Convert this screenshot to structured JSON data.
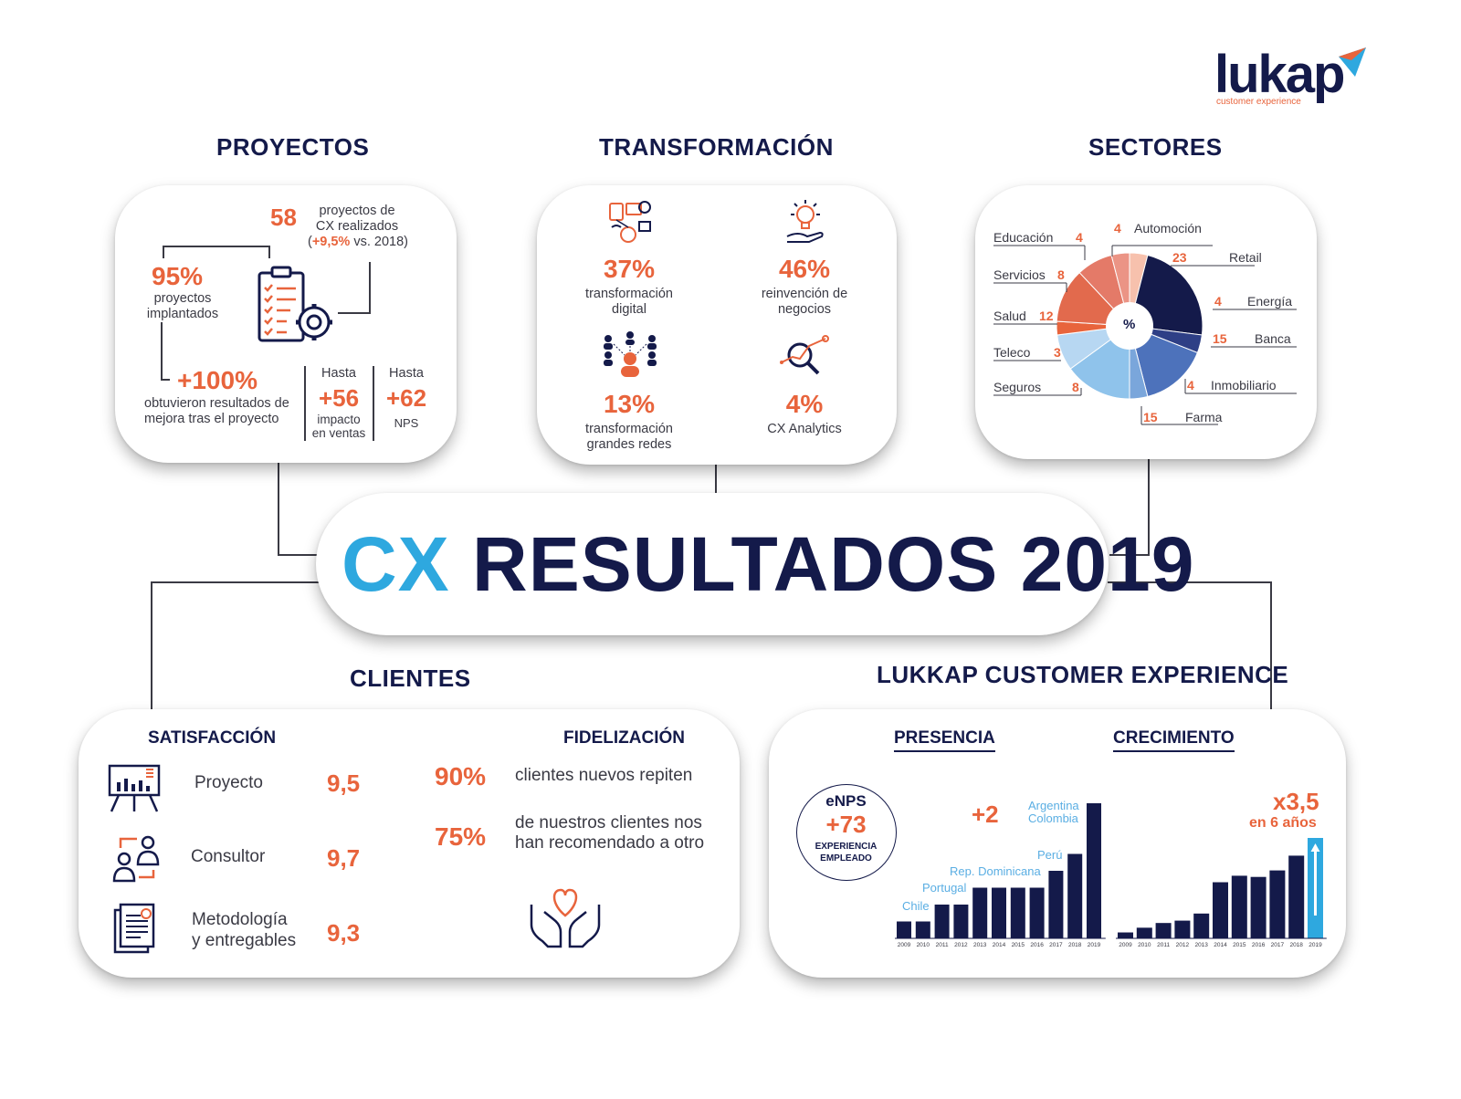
{
  "brand": {
    "name": "lukap",
    "tagline": "customer experience"
  },
  "headline": {
    "cx": "CX",
    "rest": "RESULTADOS 2019"
  },
  "colors": {
    "navy": "#141a4a",
    "orange": "#e8643c",
    "cyan": "#2ea8df",
    "lightblue": "#8fc3eb"
  },
  "proyectos": {
    "title": "PROYECTOS",
    "count": "58",
    "count_l1": "proyectos de",
    "count_l2": "CX realizados",
    "growth_open": "(",
    "growth": "+9,5%",
    "growth_rest": " vs. 2018)",
    "implant_pct": "95%",
    "implant_l1": "proyectos",
    "implant_l2": "implantados",
    "improve_pct": "+100%",
    "improve_l1": "obtuvieron resultados de",
    "improve_l2": "mejora tras el proyecto",
    "sales_label": "Hasta",
    "sales_value": "+56",
    "sales_l1": "impacto",
    "sales_l2": "en ventas",
    "nps_label": "Hasta",
    "nps_value": "+62",
    "nps_l1": "NPS"
  },
  "transformacion": {
    "title": "TRANSFORMACIÓN",
    "items": [
      {
        "value": "37%",
        "l1": "transformación",
        "l2": "digital",
        "icon": "devices-icon"
      },
      {
        "value": "46%",
        "l1": "reinvención de",
        "l2": "negocios",
        "icon": "lightbulb-hand-icon"
      },
      {
        "value": "13%",
        "l1": "transformación",
        "l2": "grandes redes",
        "icon": "network-people-icon"
      },
      {
        "value": "4%",
        "l1": "CX Analytics",
        "l2": "",
        "icon": "analytics-magnifier-icon"
      }
    ]
  },
  "sectores": {
    "title": "SECTORES",
    "center_label": "%",
    "items": [
      {
        "name": "Automoción",
        "value": "4"
      },
      {
        "name": "Retail",
        "value": "23"
      },
      {
        "name": "Energía",
        "value": "4"
      },
      {
        "name": "Banca",
        "value": "15"
      },
      {
        "name": "Inmobiliario",
        "value": "4"
      },
      {
        "name": "Farma",
        "value": "15"
      },
      {
        "name": "Seguros",
        "value": "8"
      },
      {
        "name": "Teleco",
        "value": "3"
      },
      {
        "name": "Salud",
        "value": "12"
      },
      {
        "name": "Servicios",
        "value": "8"
      },
      {
        "name": "Educación",
        "value": "4"
      }
    ]
  },
  "clientes": {
    "title": "CLIENTES",
    "satisfaccion_title": "SATISFACCIÓN",
    "fidelizacion_title": "FIDELIZACIÓN",
    "ratings": [
      {
        "label_l1": "Proyecto",
        "label_l2": "",
        "value": "9,5",
        "icon": "presentation-board-icon"
      },
      {
        "label_l1": "Consultor",
        "label_l2": "",
        "value": "9,7",
        "icon": "consultants-icon"
      },
      {
        "label_l1": "Metodología",
        "label_l2": "y entregables",
        "value": "9,3",
        "icon": "documents-icon"
      }
    ],
    "loyalty": [
      {
        "value": "90%",
        "l1": "clientes nuevos repiten",
        "l2": ""
      },
      {
        "value": "75%",
        "l1": "de nuestros clientes nos",
        "l2": "han recomendado a otro"
      }
    ]
  },
  "lukkap": {
    "title": "LUKKAP CUSTOMER EXPERIENCE",
    "presencia_title": "PRESENCIA",
    "crecimiento_title": "CRECIMIENTO",
    "enps_label": "eNPS",
    "enps_value": "+73",
    "enps_l1": "EXPERIENCIA",
    "enps_l2": "EMPLEADO",
    "plus_countries": "+2",
    "growth_value": "x3,5",
    "growth_period": "en 6 años"
  },
  "chart_data": [
    {
      "type": "pie",
      "title": "SECTORES",
      "categories": [
        "Automoción",
        "Retail",
        "Energía",
        "Banca",
        "Inmobiliario",
        "Farma",
        "Seguros",
        "Teleco",
        "Salud",
        "Servicios",
        "Educación"
      ],
      "values": [
        4,
        23,
        4,
        15,
        4,
        15,
        8,
        3,
        12,
        8,
        4
      ],
      "center_label": "%"
    },
    {
      "type": "bar",
      "title": "PRESENCIA",
      "categories": [
        "2009",
        "2010",
        "2011",
        "2012",
        "2013",
        "2014",
        "2015",
        "2016",
        "2017",
        "2018",
        "2019"
      ],
      "values": [
        2,
        2,
        4,
        4,
        6,
        6,
        6,
        6,
        8,
        10,
        16
      ],
      "annotations": [
        {
          "text": "Chile",
          "category": "2009"
        },
        {
          "text": "Portugal",
          "category": "2011"
        },
        {
          "text": "Rep. Dominicana",
          "category": "2013"
        },
        {
          "text": "Perú",
          "category": "2017"
        },
        {
          "text": "Argentina",
          "category": "2019"
        },
        {
          "text": "Colombia",
          "category": "2019"
        }
      ]
    },
    {
      "type": "bar",
      "title": "CRECIMIENTO",
      "categories": [
        "2009",
        "2010",
        "2011",
        "2012",
        "2013",
        "2014",
        "2015",
        "2016",
        "2017",
        "2018",
        "2019"
      ],
      "values": [
        1,
        1.8,
        2.6,
        3,
        4.2,
        9.5,
        10.6,
        10.4,
        11.5,
        14,
        17
      ]
    }
  ]
}
